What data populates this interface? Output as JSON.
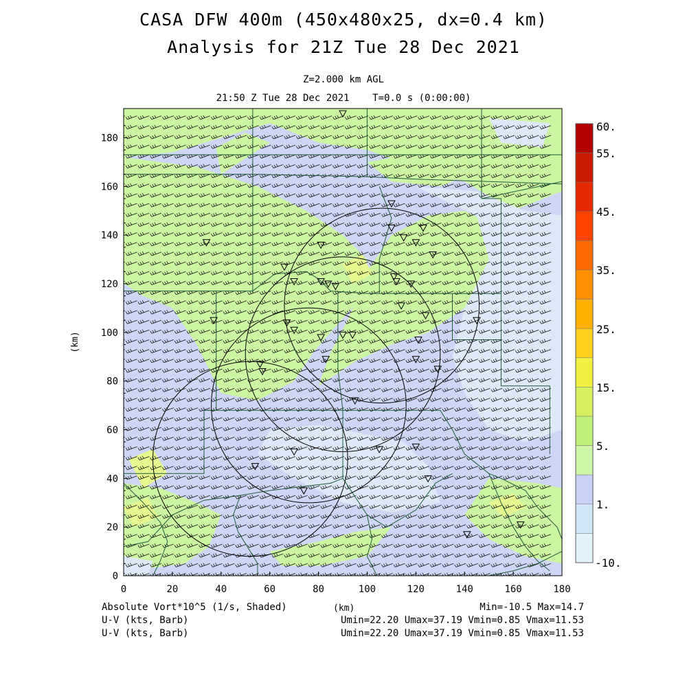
{
  "header": {
    "title_line1": "CASA DFW 400m (450x480x25, dx=0.4 km)",
    "title_line2": "Analysis for 21Z Tue 28 Dec 2021",
    "level": "Z=2.000 km AGL",
    "time_line": "21:50 Z Tue 28 Dec 2021    T=0.0 s (0:00:00)"
  },
  "footer": {
    "field_label": "Absolute Vort*10^5 (1/s, Shaded)",
    "xunit_label": "(km)",
    "minmax": "Min=-10.5 Max=14.7",
    "barb_label_1": "U-V (kts, Barb)",
    "barb_stats_1": "Umin=22.20 Umax=37.19 Vmin=0.85 Vmax=11.53",
    "barb_label_2": "U-V (kts, Barb)",
    "barb_stats_2": "Umin=22.20 Umax=37.19 Vmin=0.85 Vmax=11.53"
  },
  "colors": {
    "green": "#ccf5a2",
    "lavender": "#cdd6f5",
    "pale_blue": "#dde9f7",
    "yellow_green": "#e6f78f",
    "county_lines": "#1f5a3a",
    "radar_rings": "#000000"
  },
  "chart_data": {
    "type": "heatmap",
    "xlabel": "(km)",
    "ylabel": "(km)",
    "xlim": [
      0,
      180
    ],
    "ylim": [
      0,
      192
    ],
    "xticks": [
      "0",
      "20",
      "40",
      "60",
      "80",
      "100",
      "120",
      "140",
      "160",
      "180"
    ],
    "yticks": [
      "0",
      "20",
      "40",
      "60",
      "80",
      "100",
      "120",
      "140",
      "160",
      "180"
    ],
    "colorbar": {
      "labels": [
        "60.",
        "55.",
        "45.",
        "35.",
        "25.",
        "15.",
        "5.",
        "1.",
        "-10."
      ],
      "colors": [
        "#b40000",
        "#cc1a00",
        "#e62a00",
        "#ff4400",
        "#ff6a00",
        "#ff9100",
        "#ffb000",
        "#ffd020",
        "#f0f040",
        "#d6f060",
        "#c0f078",
        "#cdf5a8",
        "#c8d2f5",
        "#d2e4f7",
        "#e1f2fa"
      ]
    },
    "radars": [
      {
        "cx": 52,
        "cy": 48,
        "r": 40
      },
      {
        "cx": 76,
        "cy": 70,
        "r": 40
      },
      {
        "cx": 90,
        "cy": 91,
        "r": 40
      },
      {
        "cx": 106,
        "cy": 111,
        "r": 40
      }
    ],
    "stations": [
      [
        90,
        190
      ],
      [
        110,
        153
      ],
      [
        110,
        143
      ],
      [
        123,
        143
      ],
      [
        115,
        139
      ],
      [
        120,
        137
      ],
      [
        34,
        137
      ],
      [
        81,
        136
      ],
      [
        127,
        132
      ],
      [
        66,
        127
      ],
      [
        70,
        121
      ],
      [
        81,
        121
      ],
      [
        84,
        120
      ],
      [
        87,
        119
      ],
      [
        111,
        123
      ],
      [
        112,
        121
      ],
      [
        118,
        120
      ],
      [
        114,
        111
      ],
      [
        124,
        107
      ],
      [
        145,
        105
      ],
      [
        37,
        105
      ],
      [
        67,
        104
      ],
      [
        70,
        101
      ],
      [
        81,
        98
      ],
      [
        90,
        99
      ],
      [
        94,
        99
      ],
      [
        121,
        97
      ],
      [
        120,
        89
      ],
      [
        83,
        89
      ],
      [
        56,
        87
      ],
      [
        57,
        84
      ],
      [
        129,
        85
      ],
      [
        95,
        72
      ],
      [
        120,
        53
      ],
      [
        105,
        52
      ],
      [
        70,
        51
      ],
      [
        54,
        45
      ],
      [
        125,
        40
      ],
      [
        74,
        35
      ],
      [
        163,
        21
      ],
      [
        141,
        17
      ]
    ],
    "wind": {
      "u_range_kts": [
        22.2,
        37.19
      ],
      "v_range_kts": [
        0.85,
        11.53
      ]
    },
    "vorticity_range": [
      -10.5,
      14.7
    ]
  }
}
